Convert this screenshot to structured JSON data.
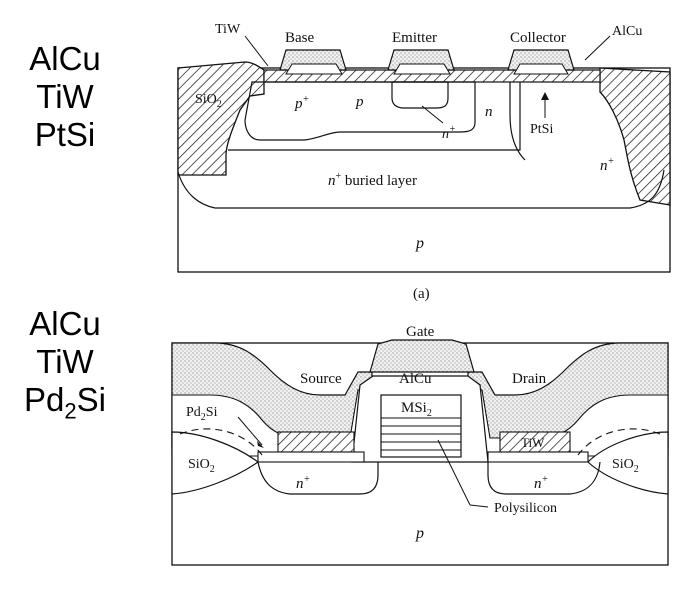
{
  "left_labels": {
    "top": [
      "AlCu",
      "TiW",
      "PtSi"
    ],
    "bottom_1": "AlCu",
    "bottom_2": "TiW",
    "bottom_3_base": "Pd",
    "bottom_3_sub": "2",
    "bottom_3_rest": "Si"
  },
  "diagram_a": {
    "labels": {
      "tiw": "TiW",
      "base": "Base",
      "emitter": "Emitter",
      "collector": "Collector",
      "alcu": "AlCu",
      "sio2_base": "SiO",
      "sio2_sub": "2",
      "p_plus_base": "p",
      "p_plus_sup": "+",
      "p": "p",
      "n": "n",
      "n_plus_emitter_base": "n",
      "n_plus_emitter_sup": "+",
      "ptsi": "PtSi",
      "n_plus_right_base": "n",
      "n_plus_right_sup": "+",
      "buried_base": "n",
      "buried_sup": "+",
      "buried_rest": " buried layer",
      "substrate": "p"
    },
    "caption": "(a)"
  },
  "diagram_b": {
    "labels": {
      "gate": "Gate",
      "source": "Source",
      "alcu": "AlCu",
      "drain": "Drain",
      "msi2_base": "MSi",
      "msi2_sub": "2",
      "pd2si_base": "Pd",
      "pd2si_sub": "2",
      "pd2si_rest": "Si",
      "sio2_left_base": "SiO",
      "sio2_left_sub": "2",
      "sio2_right_base": "SiO",
      "sio2_right_sub": "2",
      "tiw": "TiW",
      "nplus_left_base": "n",
      "nplus_left_sup": "+",
      "nplus_right_base": "n",
      "nplus_right_sup": "+",
      "polysilicon": "Polysilicon",
      "substrate": "p"
    }
  }
}
